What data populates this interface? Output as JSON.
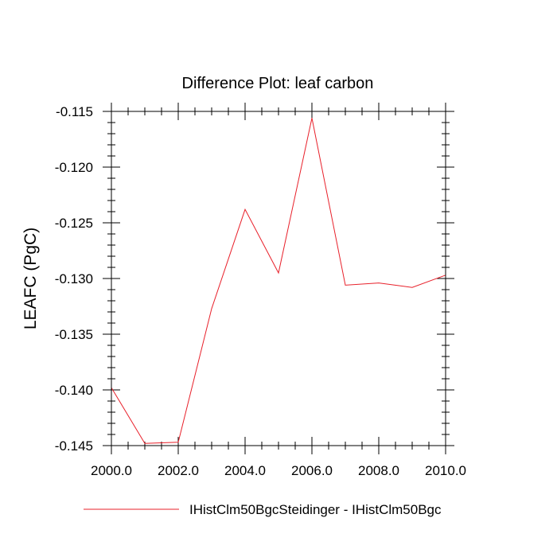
{
  "chart_data": {
    "type": "line",
    "title": "Difference Plot: leaf carbon",
    "xlabel": "",
    "ylabel": "LEAFC  (PgC)",
    "xlim": [
      2000,
      2010
    ],
    "ylim": [
      -0.145,
      -0.115
    ],
    "x_ticks": [
      2000,
      2002,
      2004,
      2006,
      2008,
      2010
    ],
    "x_tick_labels": [
      "2000.0",
      "2002.0",
      "2004.0",
      "2006.0",
      "2008.0",
      "2010.0"
    ],
    "y_ticks": [
      -0.115,
      -0.12,
      -0.125,
      -0.13,
      -0.135,
      -0.14,
      -0.145
    ],
    "y_tick_labels": [
      "-0.115",
      "-0.120",
      "-0.125",
      "-0.130",
      "-0.135",
      "-0.140",
      "-0.145"
    ],
    "grid": false,
    "legend_position": "bottom",
    "series": [
      {
        "name": "IHistClm50BgcSteidinger - IHistClm50Bgc",
        "color": "#e8202a",
        "x": [
          2000,
          2001,
          2002,
          2003,
          2004,
          2005,
          2006,
          2007,
          2008,
          2009,
          2010
        ],
        "y": [
          -0.1398,
          -0.1448,
          -0.1447,
          -0.1327,
          -0.1238,
          -0.1295,
          -0.1156,
          -0.1306,
          -0.1304,
          -0.1308,
          -0.1297
        ]
      }
    ]
  }
}
